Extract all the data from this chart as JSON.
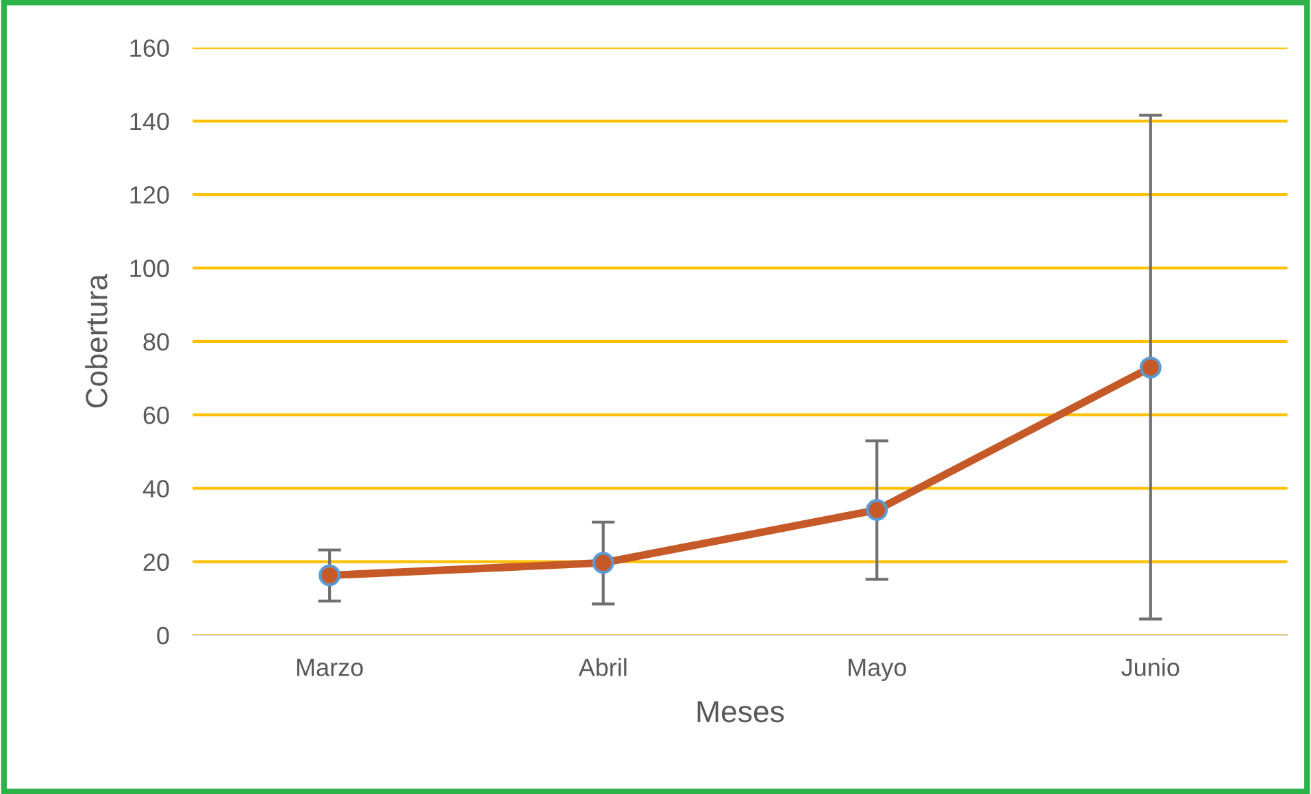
{
  "chart_data": {
    "type": "line",
    "xlabel": "Meses",
    "ylabel": "Cobertura",
    "categories": [
      "Marzo",
      "Abril",
      "Mayo",
      "Junio"
    ],
    "series": [
      {
        "color": "#c55a28",
        "values": [
          16.3,
          19.7,
          34.1,
          72.9
        ],
        "errors": [
          [
            9.3,
            23.2
          ],
          [
            8.5,
            30.8
          ],
          [
            15.2,
            52.9
          ],
          [
            4.4,
            141.6
          ]
        ]
      }
    ],
    "ylim": [
      0,
      160
    ],
    "yticks": [
      0,
      20,
      40,
      60,
      80,
      100,
      120,
      140,
      160
    ],
    "grid": "y",
    "marker": "circle",
    "line_style": "solid"
  }
}
